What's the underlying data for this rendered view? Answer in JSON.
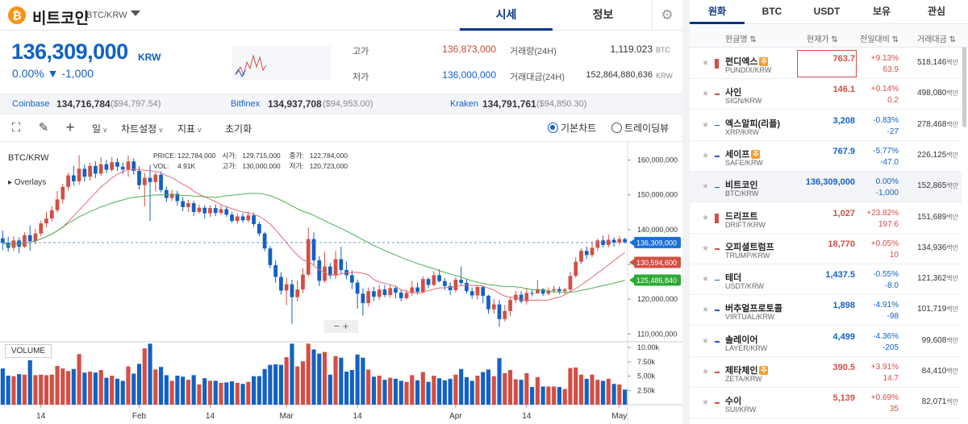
{
  "header": {
    "coin_symbol": "₿",
    "coin_name": "비트코인",
    "pair": "BTC/KRW",
    "tabs": [
      {
        "label": "시세",
        "active": true
      },
      {
        "label": "정보",
        "active": false
      }
    ],
    "icons": {
      "settings": "gear-icon"
    }
  },
  "price": {
    "current": "136,309,000",
    "unit": "KRW",
    "change": "0.00% ▼ -1,000"
  },
  "stats": {
    "high_label": "고가",
    "high_value": "136,873,000",
    "low_label": "저가",
    "low_value": "136,000,000",
    "volume_label": "거래량(24H)",
    "volume_value": "1,119.023",
    "volume_unit": "BTC",
    "amount_label": "거래대금(24H)",
    "amount_value": "152,864,880,636",
    "amount_unit": "KRW"
  },
  "exchanges": [
    {
      "name": "Coinbase",
      "price": "134,716,784",
      "usd": "($94,797.54)"
    },
    {
      "name": "Bitfinex",
      "price": "134,937,708",
      "usd": "($94,953.00)"
    },
    {
      "name": "Kraken",
      "price": "134,791,761",
      "usd": "($94,850.30)"
    }
  ],
  "toolbar": {
    "icons": [
      "fullscreen-icon",
      "draw-pencil-icon",
      "crosshair-icon"
    ],
    "menus": [
      "일",
      "차트설정",
      "지표"
    ],
    "reset": "초기화",
    "radios": [
      {
        "label": "기본차트",
        "on": true
      },
      {
        "label": "트레이딩뷰",
        "on": false
      }
    ]
  },
  "chart_data": {
    "type": "candlestick",
    "symbol": "BTC/KRW",
    "overlays_label": "Overlays",
    "ohlc_legend": {
      "price_label": "PRICE:",
      "price": "122,784,000",
      "vol_label": "VOL:",
      "vol": "4.91K",
      "open_label": "시가:",
      "open": "129,715,000",
      "high_label": "고가:",
      "high": "130,000,000",
      "close_label": "종가:",
      "close": "122,784,000",
      "low_label": "저가:",
      "low": "120,723,000"
    },
    "ylim": [
      108000000,
      165000000
    ],
    "yticks": [
      "160,000,000",
      "150,000,000",
      "140,000,000",
      "130,000,000",
      "120,000,000",
      "110,000,000"
    ],
    "ytick_values": [
      160000000,
      150000000,
      140000000,
      130000000,
      120000000,
      110000000
    ],
    "xticks": [
      {
        "label": "14",
        "index": 7
      },
      {
        "label": "Feb",
        "index": 25
      },
      {
        "label": "14",
        "index": 38
      },
      {
        "label": "Mar",
        "index": 52
      },
      {
        "label": "14",
        "index": 65
      },
      {
        "label": "Apr",
        "index": 83
      },
      {
        "label": "14",
        "index": 96
      },
      {
        "label": "May",
        "index": 113
      }
    ],
    "candles": [
      [
        137500000,
        136200000,
        139800000,
        134100000
      ],
      [
        136200000,
        134800000,
        137900000,
        133600000
      ],
      [
        134800000,
        136900000,
        138100000,
        133900000
      ],
      [
        136900000,
        135100000,
        137800000,
        133200000
      ],
      [
        135100000,
        138400000,
        139200000,
        134700000
      ],
      [
        138400000,
        136700000,
        141200000,
        133900000
      ],
      [
        136700000,
        138900000,
        140200000,
        135800000
      ],
      [
        138900000,
        141800000,
        142600000,
        138100000
      ],
      [
        141800000,
        143200000,
        145100000,
        140700000
      ],
      [
        143200000,
        145600000,
        146800000,
        142300000
      ],
      [
        145600000,
        148700000,
        151100000,
        144900000
      ],
      [
        148700000,
        152300000,
        153200000,
        147500000
      ],
      [
        152300000,
        155600000,
        156400000,
        151200000
      ],
      [
        155600000,
        153900000,
        158300000,
        152700000
      ],
      [
        153900000,
        157500000,
        161400000,
        152900000
      ],
      [
        157500000,
        155200000,
        158700000,
        153800000
      ],
      [
        155200000,
        158300000,
        159200000,
        154100000
      ],
      [
        158300000,
        156100000,
        159700000,
        154800000
      ],
      [
        156100000,
        158800000,
        160800000,
        155400000
      ],
      [
        158800000,
        157200000,
        160100000,
        156200000
      ],
      [
        157200000,
        159400000,
        160900000,
        156600000
      ],
      [
        159400000,
        158100000,
        160600000,
        156900000
      ],
      [
        158100000,
        157300000,
        159300000,
        156000000
      ],
      [
        157300000,
        159600000,
        161300000,
        155200000
      ],
      [
        159600000,
        156900000,
        160500000,
        155800000
      ],
      [
        156900000,
        152800000,
        158200000,
        151600000
      ],
      [
        152800000,
        154900000,
        156300000,
        146700000
      ],
      [
        154900000,
        153700000,
        158600000,
        142500000
      ],
      [
        153700000,
        155800000,
        156400000,
        150900000
      ],
      [
        155800000,
        151400000,
        156700000,
        150700000
      ],
      [
        151400000,
        149100000,
        152300000,
        147900000
      ],
      [
        149100000,
        150300000,
        151500000,
        148200000
      ],
      [
        150300000,
        148200000,
        151200000,
        146900000
      ],
      [
        148200000,
        146500000,
        149400000,
        145300000
      ],
      [
        146500000,
        147600000,
        148600000,
        145100000
      ],
      [
        147600000,
        145100000,
        148300000,
        143900000
      ],
      [
        145100000,
        146300000,
        147200000,
        144600000
      ],
      [
        146300000,
        144700000,
        147000000,
        143200000
      ],
      [
        144700000,
        146200000,
        146900000,
        143600000
      ],
      [
        146200000,
        144800000,
        147200000,
        143900000
      ],
      [
        144800000,
        145900000,
        147100000,
        144200000
      ],
      [
        145900000,
        144300000,
        146700000,
        143700000
      ],
      [
        144300000,
        142500000,
        145100000,
        141900000
      ],
      [
        142500000,
        143800000,
        144600000,
        141700000
      ],
      [
        143800000,
        142700000,
        144700000,
        142000000
      ],
      [
        142700000,
        144100000,
        145200000,
        142100000
      ],
      [
        144100000,
        141600000,
        145000000,
        140800000
      ],
      [
        141600000,
        138900000,
        142300000,
        138100000
      ],
      [
        138900000,
        134600000,
        139400000,
        133800000
      ],
      [
        134600000,
        129800000,
        135300000,
        128900000
      ],
      [
        129800000,
        126400000,
        131200000,
        124700000
      ],
      [
        126400000,
        122500000,
        127700000,
        121300000
      ],
      [
        122500000,
        124300000,
        126200000,
        118300000
      ],
      [
        124300000,
        120600000,
        125600000,
        112900000
      ],
      [
        120600000,
        122800000,
        125400000,
        119300000
      ],
      [
        122800000,
        127100000,
        128900000,
        121800000
      ],
      [
        127100000,
        137300000,
        140600000,
        126500000
      ],
      [
        137300000,
        131200000,
        139200000,
        129800000
      ],
      [
        131200000,
        125300000,
        132400000,
        123800000
      ],
      [
        125300000,
        129400000,
        133600000,
        124700000
      ],
      [
        129400000,
        126800000,
        130400000,
        125900000
      ],
      [
        126800000,
        131500000,
        133900000,
        125800000
      ],
      [
        131500000,
        128400000,
        135100000,
        127300000
      ],
      [
        128400000,
        126900000,
        130800000,
        125700000
      ],
      [
        126900000,
        124800000,
        128300000,
        122900000
      ],
      [
        124800000,
        121600000,
        125700000,
        117300000
      ],
      [
        121600000,
        118900000,
        123100000,
        115300000
      ],
      [
        118900000,
        122300000,
        123400000,
        117900000
      ],
      [
        122300000,
        120700000,
        123600000,
        119500000
      ],
      [
        120700000,
        122800000,
        124100000,
        119800000
      ],
      [
        122800000,
        121200000,
        124100000,
        120600000
      ],
      [
        121200000,
        123200000,
        124300000,
        120400000
      ],
      [
        123200000,
        121900000,
        123900000,
        120200000
      ],
      [
        121900000,
        120300000,
        122700000,
        119400000
      ],
      [
        120300000,
        121800000,
        122900000,
        119800000
      ],
      [
        121800000,
        123400000,
        125300000,
        120900000
      ],
      [
        123400000,
        122100000,
        124800000,
        121400000
      ],
      [
        122100000,
        125800000,
        126600000,
        121600000
      ],
      [
        125800000,
        124100000,
        126300000,
        123200000
      ],
      [
        124100000,
        126900000,
        128100000,
        123800000
      ],
      [
        126900000,
        125200000,
        128600000,
        124800000
      ],
      [
        125200000,
        123800000,
        126100000,
        122700000
      ],
      [
        123800000,
        122600000,
        124900000,
        121200000
      ],
      [
        122600000,
        125600000,
        126400000,
        121900000
      ],
      [
        125600000,
        124700000,
        129400000,
        123800000
      ],
      [
        124700000,
        122300000,
        125600000,
        121600000
      ],
      [
        122300000,
        121100000,
        123400000,
        120100000
      ],
      [
        121100000,
        123500000,
        124100000,
        119800000
      ],
      [
        123500000,
        121000000,
        123900000,
        118900000
      ],
      [
        121000000,
        117100000,
        121300000,
        115800000
      ],
      [
        117100000,
        118500000,
        120100000,
        115900000
      ],
      [
        118500000,
        114300000,
        119800000,
        112100000
      ],
      [
        114300000,
        116600000,
        118400000,
        113600000
      ],
      [
        116600000,
        119800000,
        120600000,
        115200000
      ],
      [
        119800000,
        121300000,
        122500000,
        118900000
      ],
      [
        121300000,
        119400000,
        122300000,
        118800000
      ],
      [
        119400000,
        121800000,
        123300000,
        118500000
      ],
      [
        121800000,
        121700000,
        122900000,
        120800000
      ],
      [
        121700000,
        122900000,
        125600000,
        121600000
      ],
      [
        122900000,
        121600000,
        123100000,
        120900000
      ],
      [
        121600000,
        122500000,
        123400000,
        121200000
      ],
      [
        122500000,
        122900000,
        123900000,
        121700000
      ],
      [
        122900000,
        122300000,
        123600000,
        121500000
      ],
      [
        122300000,
        122800000,
        123300000,
        121600000
      ],
      [
        122800000,
        126700000,
        127900000,
        122100000
      ],
      [
        126700000,
        130800000,
        132100000,
        126200000
      ],
      [
        130800000,
        133900000,
        134600000,
        130100000
      ],
      [
        133900000,
        132700000,
        135200000,
        131500000
      ],
      [
        132700000,
        134800000,
        136600000,
        132100000
      ],
      [
        134800000,
        136900000,
        137400000,
        133900000
      ],
      [
        136900000,
        135600000,
        138200000,
        134900000
      ],
      [
        135600000,
        137100000,
        138600000,
        134900000
      ],
      [
        137100000,
        136300000,
        137800000,
        135100000
      ],
      [
        136300000,
        137300000,
        138200000,
        135600000
      ],
      [
        137300000,
        136309000,
        137600000,
        136000000
      ]
    ],
    "ma_short_color": "#e06c75",
    "ma_long_color": "#4caf50",
    "up_color": "#d24f45",
    "down_color": "#1261c4",
    "current_price_label": "136,309,000",
    "ma_short_label": "130,594,600",
    "ma_long_label": "125,486,840",
    "volume_label": "VOLUME",
    "volume_ticks": [
      "10.00k",
      "7.50k",
      "5.00k",
      "2.50k"
    ],
    "volume_tick_values": [
      10000,
      7500,
      5000,
      2500
    ],
    "volume_max": 11000,
    "zoom_text": "−   +"
  },
  "market": {
    "tabs": [
      {
        "label": "원화",
        "active": true
      },
      {
        "label": "BTC",
        "active": false
      },
      {
        "label": "USDT",
        "active": false
      },
      {
        "label": "보유",
        "active": false
      },
      {
        "label": "관심",
        "active": false
      }
    ],
    "columns": [
      "한글명 ⇅",
      "현재가 ⇅",
      "전일대비 ⇅",
      "거래대금 ⇅"
    ],
    "rows": [
      {
        "name": "펀디엑스",
        "badge": "주",
        "pair": "PUNDIX/KRW",
        "price": "763.7",
        "rate": "+9.13%",
        "chg": "63.9",
        "vol": "518,146",
        "vol_unit": "백만",
        "dir": "up"
      },
      {
        "name": "사인",
        "badge": "",
        "pair": "SIGN/KRW",
        "price": "146.1",
        "rate": "+0.14%",
        "chg": "0.2",
        "vol": "498,080",
        "vol_unit": "백만",
        "dir": "up"
      },
      {
        "name": "엑스알피(리플)",
        "badge": "",
        "pair": "XRP/KRW",
        "price": "3,208",
        "rate": "-0.83%",
        "chg": "-27",
        "vol": "278,468",
        "vol_unit": "백만",
        "dir": "down"
      },
      {
        "name": "세이프",
        "badge": "주",
        "pair": "SAFE/KRW",
        "price": "767.9",
        "rate": "-5.77%",
        "chg": "-47.0",
        "vol": "226,125",
        "vol_unit": "백만",
        "dir": "down"
      },
      {
        "name": "비트코인",
        "badge": "",
        "pair": "BTC/KRW",
        "price": "136,309,000",
        "rate": "0.00%",
        "chg": "-1,000",
        "vol": "152,865",
        "vol_unit": "백만",
        "dir": "down"
      },
      {
        "name": "드리프트",
        "badge": "",
        "pair": "DRIFT/KRW",
        "price": "1,027",
        "rate": "+23.82%",
        "chg": "197.6",
        "vol": "151,689",
        "vol_unit": "백만",
        "dir": "up"
      },
      {
        "name": "오피셜트럼프",
        "badge": "",
        "pair": "TRUMP/KRW",
        "price": "18,770",
        "rate": "+0.05%",
        "chg": "10",
        "vol": "134,936",
        "vol_unit": "백만",
        "dir": "up"
      },
      {
        "name": "테더",
        "badge": "",
        "pair": "USDT/KRW",
        "price": "1,437.5",
        "rate": "-0.55%",
        "chg": "-8.0",
        "vol": "121,362",
        "vol_unit": "백만",
        "dir": "down"
      },
      {
        "name": "버추얼프로토콜",
        "badge": "",
        "pair": "VIRTUAL/KRW",
        "price": "1,898",
        "rate": "-4.91%",
        "chg": "-98",
        "vol": "101,719",
        "vol_unit": "백만",
        "dir": "down"
      },
      {
        "name": "솔레이어",
        "badge": "",
        "pair": "LAYER/KRW",
        "price": "4,499",
        "rate": "-4.36%",
        "chg": "-205",
        "vol": "99,608",
        "vol_unit": "백만",
        "dir": "down"
      },
      {
        "name": "제타체인",
        "badge": "주",
        "pair": "ZETA/KRW",
        "price": "390.5",
        "rate": "+3.91%",
        "chg": "14.7",
        "vol": "84,410",
        "vol_unit": "백만",
        "dir": "up"
      },
      {
        "name": "수이",
        "badge": "",
        "pair": "SUI/KRW",
        "price": "5,139",
        "rate": "+0.69%",
        "chg": "35",
        "vol": "82,071",
        "vol_unit": "백만",
        "dir": "up"
      }
    ]
  }
}
